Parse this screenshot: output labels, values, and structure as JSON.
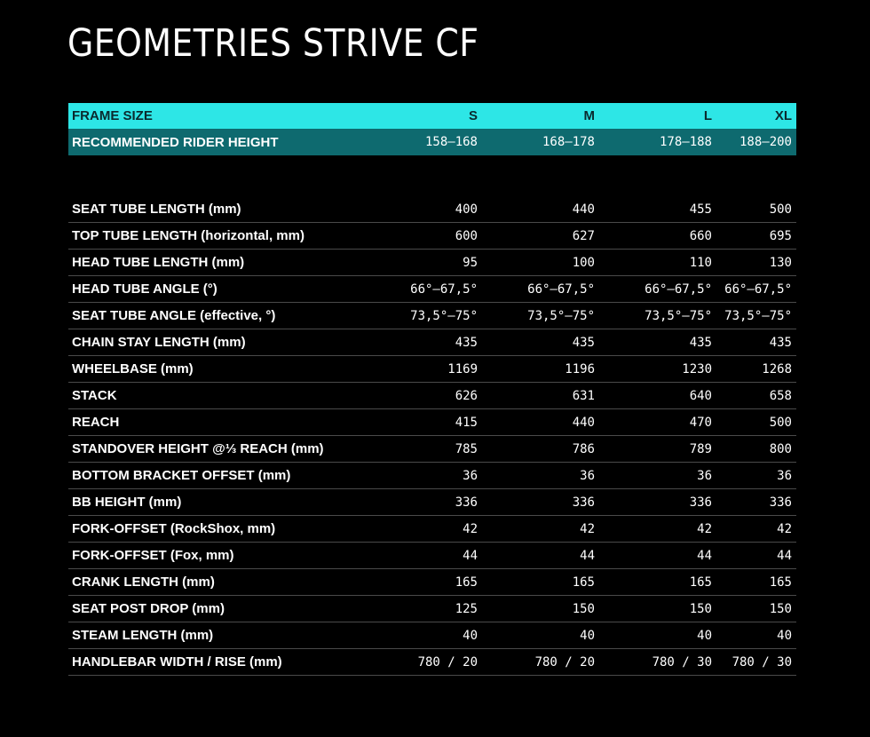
{
  "title": "GEOMETRIES STRIVE CF",
  "colors": {
    "background": "#000000",
    "frame_size_bar": "#2de6e6",
    "rider_height_bar": "#0e6a6f",
    "row_divider": "#4a4a4a"
  },
  "header": {
    "label": "FRAME SIZE",
    "sizes": [
      "S",
      "M",
      "L",
      "XL"
    ]
  },
  "rider_height": {
    "label": "RECOMMENDED RIDER HEIGHT",
    "values": [
      "158–168",
      "168–178",
      "178–188",
      "188–200"
    ]
  },
  "rows": [
    {
      "label": "SEAT TUBE LENGTH (mm)",
      "values": [
        "400",
        "440",
        "455",
        "500"
      ]
    },
    {
      "label": "TOP TUBE LENGTH (horizontal, mm)",
      "values": [
        "600",
        "627",
        "660",
        "695"
      ]
    },
    {
      "label": "HEAD TUBE LENGTH (mm)",
      "values": [
        "95",
        "100",
        "110",
        "130"
      ]
    },
    {
      "label": "HEAD TUBE ANGLE (°)",
      "values": [
        "66°–67,5°",
        "66°–67,5°",
        "66°–67,5°",
        "66°–67,5°"
      ]
    },
    {
      "label": "SEAT TUBE ANGLE (effective, °)",
      "values": [
        "73,5°–75°",
        "73,5°–75°",
        "73,5°–75°",
        "73,5°–75°"
      ]
    },
    {
      "label": "CHAIN STAY LENGTH (mm)",
      "values": [
        "435",
        "435",
        "435",
        "435"
      ]
    },
    {
      "label": "WHEELBASE (mm)",
      "values": [
        "1169",
        "1196",
        "1230",
        "1268"
      ]
    },
    {
      "label": "STACK",
      "values": [
        "626",
        "631",
        "640",
        "658"
      ]
    },
    {
      "label": "REACH",
      "values": [
        "415",
        "440",
        "470",
        "500"
      ]
    },
    {
      "label": "STANDOVER HEIGHT @⅓ REACH (mm)",
      "values": [
        "785",
        "786",
        "789",
        "800"
      ]
    },
    {
      "label": "BOTTOM BRACKET OFFSET (mm)",
      "values": [
        "36",
        "36",
        "36",
        "36"
      ]
    },
    {
      "label": "BB HEIGHT (mm)",
      "values": [
        "336",
        "336",
        "336",
        "336"
      ]
    },
    {
      "label": "FORK-OFFSET (RockShox, mm)",
      "values": [
        "42",
        "42",
        "42",
        "42"
      ]
    },
    {
      "label": "FORK-OFFSET (Fox, mm)",
      "values": [
        "44",
        "44",
        "44",
        "44"
      ]
    },
    {
      "label": "CRANK LENGTH (mm)",
      "values": [
        "165",
        "165",
        "165",
        "165"
      ]
    },
    {
      "label": "SEAT POST DROP (mm)",
      "values": [
        "125",
        "150",
        "150",
        "150"
      ]
    },
    {
      "label": "STEAM LENGTH (mm)",
      "values": [
        "40",
        "40",
        "40",
        "40"
      ]
    },
    {
      "label": "HANDLEBAR WIDTH / RISE (mm)",
      "values": [
        "780 / 20",
        "780 / 20",
        "780 / 30",
        "780 / 30"
      ]
    }
  ]
}
